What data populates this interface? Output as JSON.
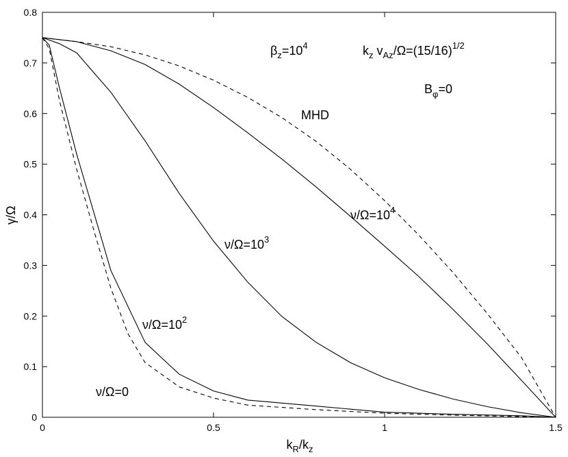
{
  "chart_data": {
    "type": "line",
    "title": "",
    "xlabel": {
      "main": "k",
      "sub1": "R",
      "mid": "/k",
      "sub2": "z"
    },
    "ylabel": "γ/Ω",
    "xlim": [
      0,
      1.5
    ],
    "ylim": [
      0,
      0.8
    ],
    "xticks": [
      0,
      0.5,
      1,
      1.5
    ],
    "yticks": [
      0,
      0.1,
      0.2,
      0.3,
      0.4,
      0.5,
      0.6,
      0.7,
      0.8
    ],
    "grid": false,
    "series": [
      {
        "style": "dashed",
        "x": [
          0,
          0.1,
          0.2,
          0.3,
          0.4,
          0.5,
          0.6,
          0.7,
          0.8,
          0.9,
          1.0,
          1.1,
          1.2,
          1.3,
          1.4,
          1.5
        ],
        "y": [
          0.75,
          0.742,
          0.732,
          0.716,
          0.694,
          0.666,
          0.632,
          0.592,
          0.545,
          0.49,
          0.428,
          0.36,
          0.286,
          0.205,
          0.118,
          0.0
        ]
      },
      {
        "style": "solid",
        "x": [
          0,
          0.1,
          0.2,
          0.3,
          0.4,
          0.5,
          0.6,
          0.7,
          0.8,
          0.9,
          1.0,
          1.1,
          1.2,
          1.3,
          1.4,
          1.5
        ],
        "y": [
          0.75,
          0.742,
          0.724,
          0.697,
          0.658,
          0.612,
          0.562,
          0.51,
          0.455,
          0.397,
          0.338,
          0.278,
          0.213,
          0.145,
          0.073,
          0.0
        ]
      },
      {
        "style": "solid",
        "x": [
          0,
          0.05,
          0.1,
          0.2,
          0.3,
          0.4,
          0.5,
          0.6,
          0.7,
          0.8,
          0.9,
          1.0,
          1.1,
          1.2,
          1.3,
          1.4,
          1.5
        ],
        "y": [
          0.75,
          0.738,
          0.72,
          0.642,
          0.546,
          0.442,
          0.348,
          0.267,
          0.199,
          0.148,
          0.108,
          0.078,
          0.055,
          0.036,
          0.021,
          0.009,
          0.0
        ]
      },
      {
        "style": "solid",
        "x": [
          0,
          0.02,
          0.05,
          0.1,
          0.15,
          0.2,
          0.3,
          0.4,
          0.5,
          0.6,
          0.8,
          1.0,
          1.2,
          1.4,
          1.5
        ],
        "y": [
          0.75,
          0.735,
          0.65,
          0.52,
          0.405,
          0.29,
          0.148,
          0.085,
          0.052,
          0.034,
          0.022,
          0.01,
          0.006,
          0.003,
          0.0
        ]
      },
      {
        "style": "dashed",
        "x": [
          0,
          0.02,
          0.05,
          0.1,
          0.15,
          0.2,
          0.25,
          0.3,
          0.4,
          0.5,
          0.6,
          0.8,
          1.0,
          1.2,
          1.5
        ],
        "y": [
          0.75,
          0.728,
          0.625,
          0.49,
          0.37,
          0.255,
          0.165,
          0.108,
          0.06,
          0.038,
          0.024,
          0.015,
          0.008,
          0.004,
          0.0
        ]
      }
    ]
  },
  "annotations": {
    "beta_main": "β",
    "beta_sub": "z",
    "beta_eq": "=10",
    "beta_exp": "4",
    "k_main": "k",
    "k_sub1": "z",
    "k_v": " v",
    "k_sub2": "Az",
    "k_rest": "/Ω=(15/16)",
    "k_exp": "1/2",
    "b_main": "B",
    "b_sub": "φ",
    "b_eq": "=0",
    "mhd": "MHD",
    "nu4_main": "ν/Ω=10",
    "nu4_exp": "4",
    "nu3_main": "ν/Ω=10",
    "nu3_exp": "3",
    "nu2_main": "ν/Ω=10",
    "nu2_exp": "2",
    "nu0": "ν/Ω=0"
  }
}
